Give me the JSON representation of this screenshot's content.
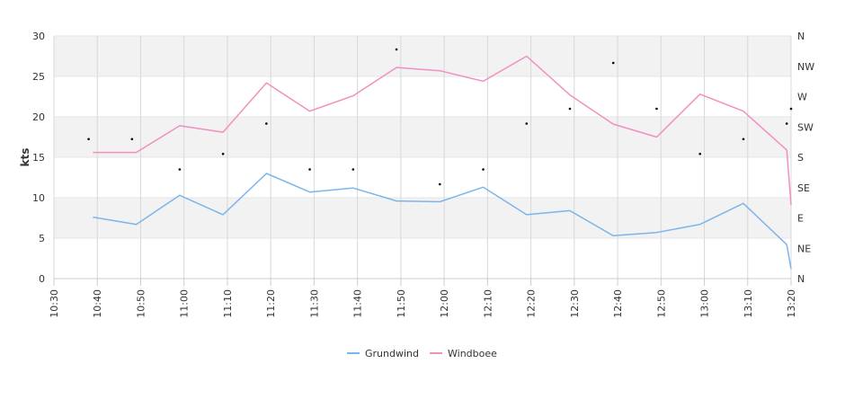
{
  "chart_data": {
    "type": "line",
    "ylabel": "kts",
    "ylim": [
      0,
      30
    ],
    "y_ticks": [
      "0",
      "5",
      "10",
      "15",
      "20",
      "25",
      "30"
    ],
    "y2_ticks": [
      "N",
      "NE",
      "E",
      "SE",
      "S",
      "SW",
      "W",
      "NW",
      "N"
    ],
    "y2_range": [
      0,
      360
    ],
    "x_range": [
      "10:30",
      "13:20"
    ],
    "x_ticks": [
      "10:30",
      "10:40",
      "10:50",
      "11:00",
      "11:10",
      "11:20",
      "11:30",
      "11:40",
      "11:50",
      "12:00",
      "12:10",
      "12:20",
      "12:30",
      "12:40",
      "12:50",
      "13:00",
      "13:10",
      "13:20"
    ],
    "grid": true,
    "legend_position": "bottom",
    "colors": {
      "grundwind": "#7cb5ec",
      "windboee": "#f28fbf",
      "direction": "#000000",
      "band": "#f2f2f2"
    },
    "series": [
      {
        "name": "Grundwind",
        "x": [
          "10:39",
          "10:49",
          "10:59",
          "11:09",
          "11:19",
          "11:29",
          "11:39",
          "11:49",
          "11:59",
          "12:09",
          "12:19",
          "12:29",
          "12:39",
          "12:49",
          "12:59",
          "13:09",
          "13:19",
          "13:20"
        ],
        "values": [
          7.6,
          6.7,
          10.3,
          7.9,
          13.0,
          10.7,
          11.2,
          9.6,
          9.5,
          11.3,
          7.9,
          8.4,
          5.3,
          5.7,
          6.7,
          9.3,
          4.2,
          1.2
        ]
      },
      {
        "name": "Windboee",
        "x": [
          "10:39",
          "10:49",
          "10:59",
          "11:09",
          "11:19",
          "11:29",
          "11:39",
          "11:49",
          "11:59",
          "12:09",
          "12:19",
          "12:29",
          "12:39",
          "12:49",
          "12:59",
          "13:09",
          "13:19",
          "13:20"
        ],
        "values": [
          15.6,
          15.6,
          18.9,
          18.1,
          24.2,
          20.7,
          22.6,
          26.1,
          25.7,
          24.4,
          27.5,
          22.7,
          19.1,
          17.5,
          22.8,
          20.7,
          15.9,
          9.1
        ]
      }
    ],
    "direction_points": {
      "x": [
        "10:38",
        "10:48",
        "10:59",
        "11:09",
        "11:19",
        "11:29",
        "11:39",
        "11:49",
        "11:59",
        "12:09",
        "12:19",
        "12:29",
        "12:39",
        "12:49",
        "12:59",
        "13:09",
        "13:19",
        "13:20"
      ],
      "values": [
        207,
        207,
        162,
        185,
        230,
        162,
        162,
        340,
        140,
        162,
        230,
        252,
        320,
        252,
        185,
        207,
        230,
        252
      ]
    }
  }
}
